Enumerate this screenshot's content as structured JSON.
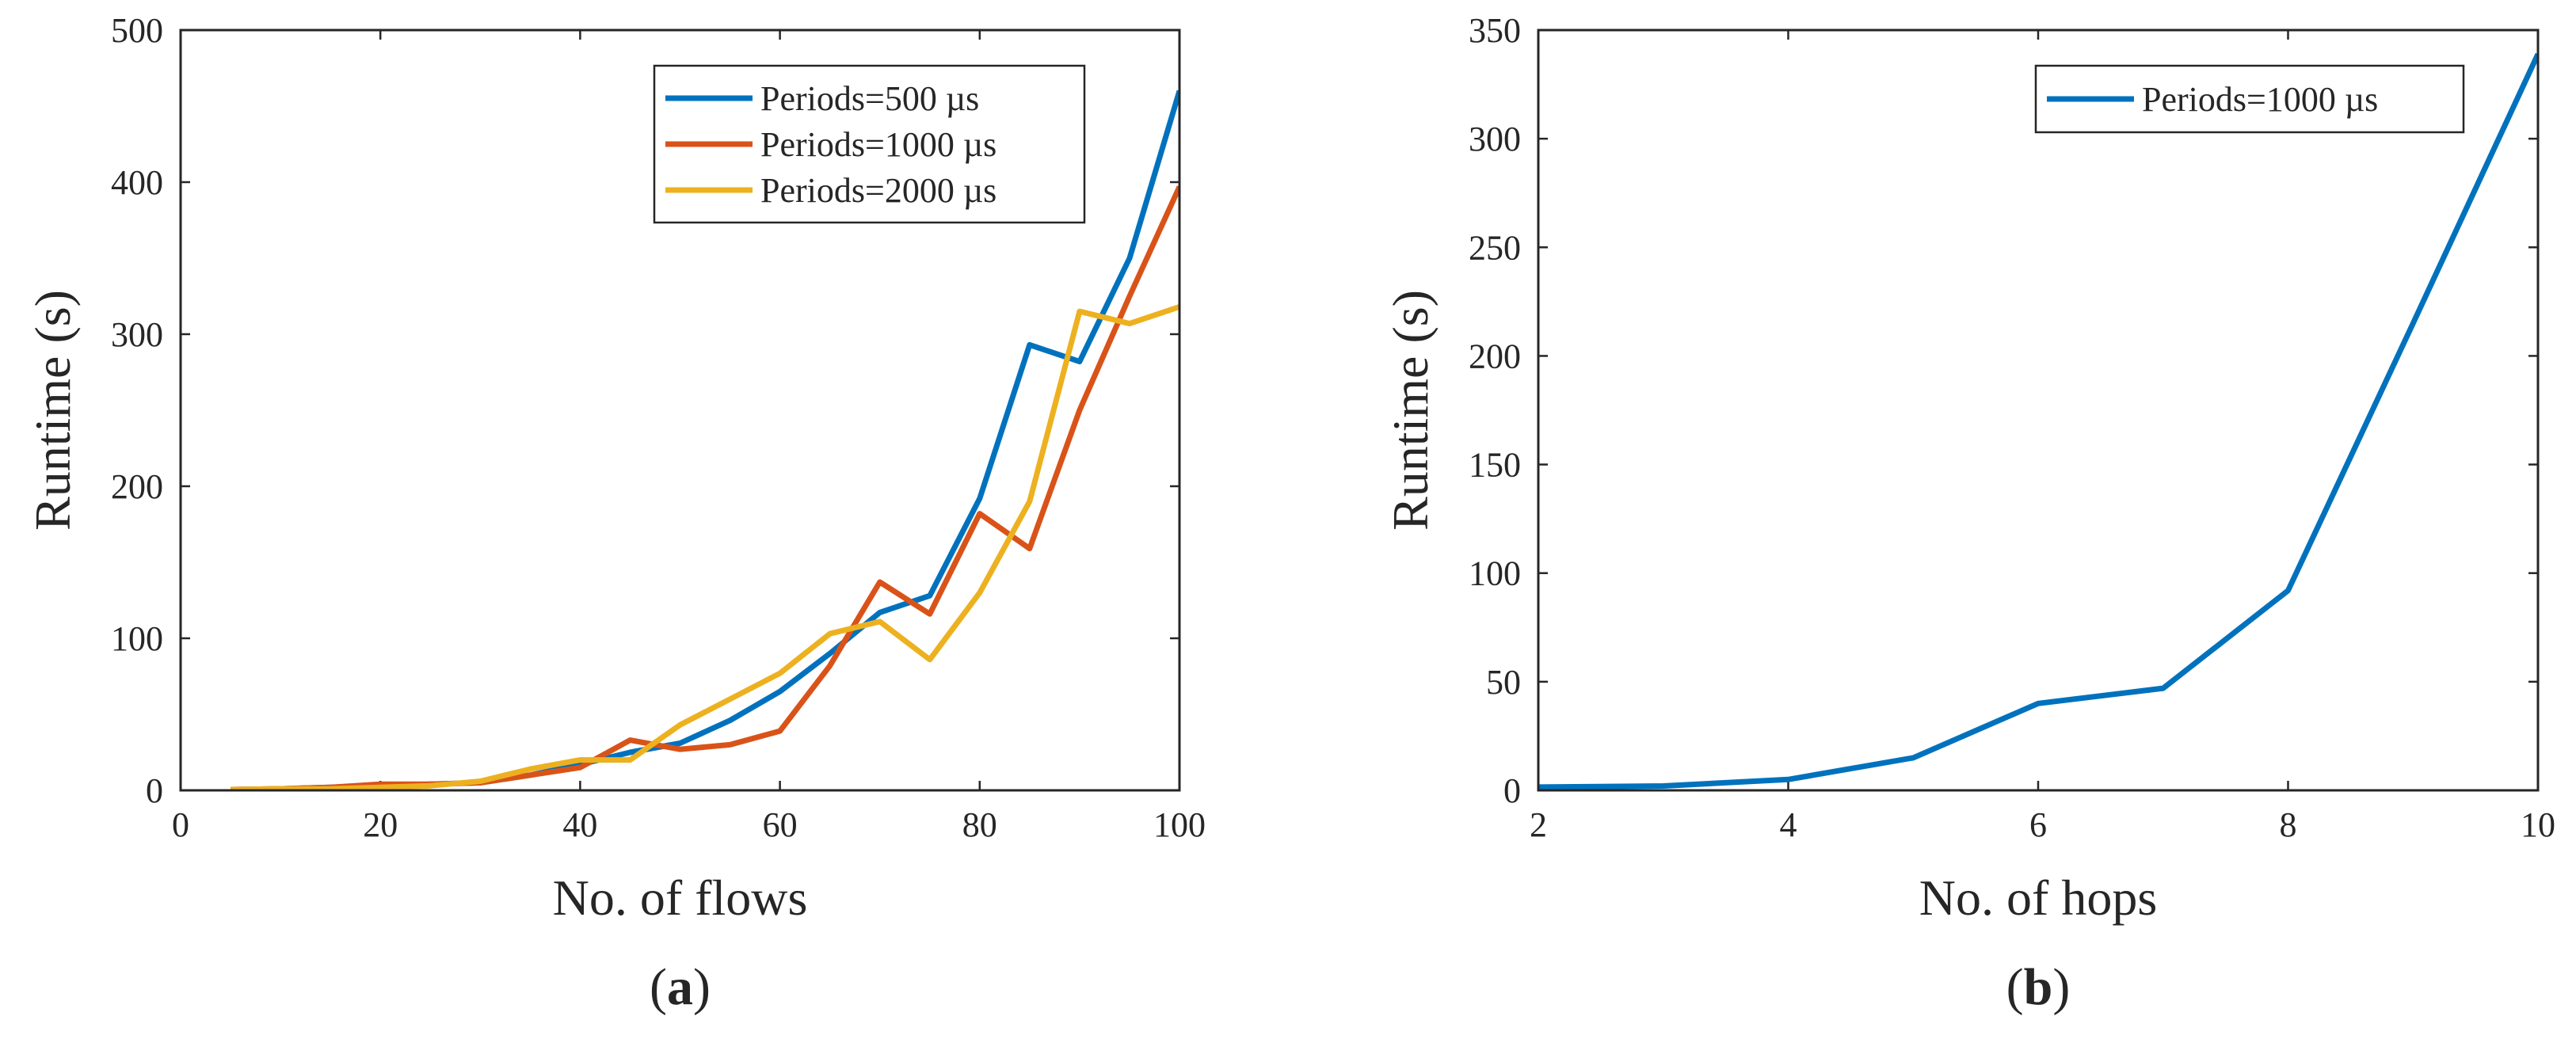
{
  "chart_data": [
    {
      "id": "a",
      "type": "line",
      "panel_label": "a",
      "xlabel": "No. of flows",
      "ylabel": "Runtime (s)",
      "xlim": [
        0,
        100
      ],
      "ylim": [
        0,
        500
      ],
      "xticks": [
        0,
        20,
        40,
        60,
        80,
        100
      ],
      "yticks": [
        0,
        100,
        200,
        300,
        400,
        500
      ],
      "legend_position": "top-right",
      "series": [
        {
          "name": "Periods=500 µs",
          "color": "#0072BD",
          "x": [
            5,
            10,
            15,
            20,
            25,
            30,
            35,
            40,
            45,
            50,
            55,
            60,
            65,
            70,
            75,
            80,
            85,
            90,
            95,
            100
          ],
          "values": [
            0.5,
            1,
            2,
            3,
            4,
            5,
            10,
            17,
            25,
            31,
            46,
            65,
            90,
            117,
            128,
            192,
            293,
            282,
            350,
            460
          ]
        },
        {
          "name": "Periods=1000 µs",
          "color": "#D95319",
          "x": [
            5,
            10,
            15,
            20,
            25,
            30,
            35,
            40,
            45,
            50,
            55,
            60,
            65,
            70,
            75,
            80,
            85,
            90,
            95,
            100
          ],
          "values": [
            0.5,
            1,
            2,
            4,
            4,
            5,
            10,
            15,
            33,
            27,
            30,
            39,
            82,
            137,
            116,
            182,
            159,
            250,
            325,
            397
          ]
        },
        {
          "name": "Periods=2000 µs",
          "color": "#EDB120",
          "x": [
            5,
            10,
            15,
            20,
            25,
            30,
            35,
            40,
            45,
            50,
            55,
            60,
            65,
            70,
            75,
            80,
            85,
            90,
            95,
            100
          ],
          "values": [
            0.5,
            1,
            1,
            2,
            3,
            6,
            14,
            20,
            20,
            43,
            60,
            77,
            103,
            111,
            86,
            130,
            190,
            315,
            307,
            318
          ]
        }
      ]
    },
    {
      "id": "b",
      "type": "line",
      "panel_label": "b",
      "xlabel": "No. of hops",
      "ylabel": "Runtime (s)",
      "xlim": [
        2,
        10
      ],
      "ylim": [
        0,
        350
      ],
      "xticks": [
        2,
        4,
        6,
        8,
        10
      ],
      "yticks": [
        0,
        50,
        100,
        150,
        200,
        250,
        300,
        350
      ],
      "legend_position": "top-right",
      "series": [
        {
          "name": "Periods=1000 µs",
          "color": "#0072BD",
          "x": [
            2,
            3,
            4,
            5,
            6,
            7,
            8,
            9,
            10
          ],
          "values": [
            1.5,
            2,
            5,
            15,
            40,
            47,
            92,
            215,
            339
          ]
        }
      ]
    }
  ]
}
